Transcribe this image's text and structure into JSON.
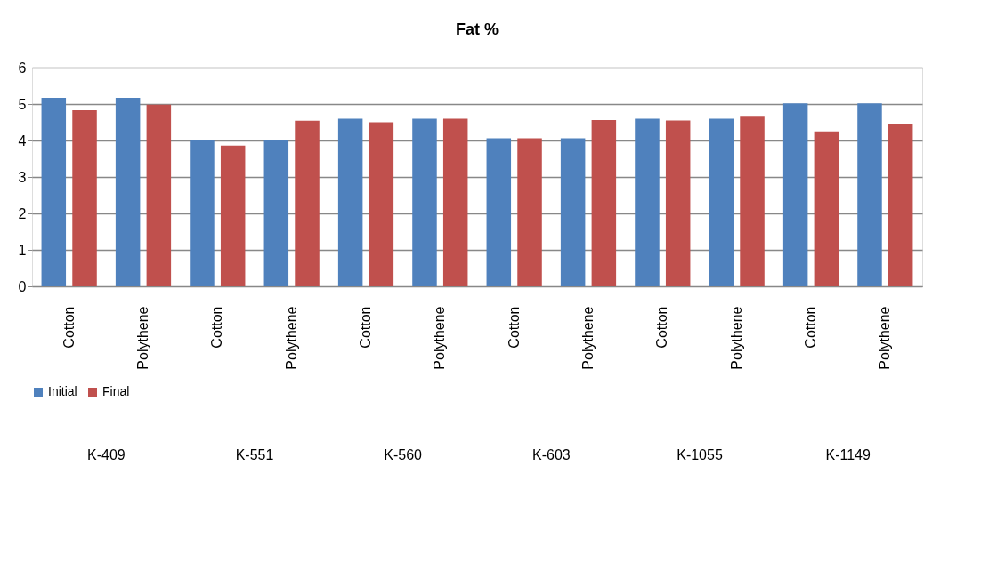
{
  "chart_data": {
    "type": "bar",
    "title": "Fat %",
    "categories": [
      "Cotton",
      "Polythene",
      "Cotton",
      "Polythene",
      "Cotton",
      "Polythene",
      "Cotton",
      "Polythene",
      "Cotton",
      "Polythene",
      "Cotton",
      "Polythene"
    ],
    "annotations": [
      "K-409",
      "K-551",
      "K-560",
      "K-603",
      "K-1055",
      "K-1149"
    ],
    "series": [
      {
        "name": "Initial",
        "color": "#4f81bd",
        "values": [
          5.17,
          5.17,
          4.0,
          4.0,
          4.6,
          4.6,
          4.06,
          4.06,
          4.6,
          4.6,
          5.02,
          5.02
        ]
      },
      {
        "name": "Final",
        "color": "#c0504d",
        "values": [
          4.83,
          4.98,
          3.86,
          4.54,
          4.5,
          4.6,
          4.06,
          4.56,
          4.55,
          4.65,
          4.25,
          4.45
        ]
      }
    ],
    "ylim": [
      0,
      6
    ],
    "yticks": [
      0,
      1,
      2,
      3,
      4,
      5,
      6
    ],
    "grid": "y",
    "legend": "bottom"
  }
}
